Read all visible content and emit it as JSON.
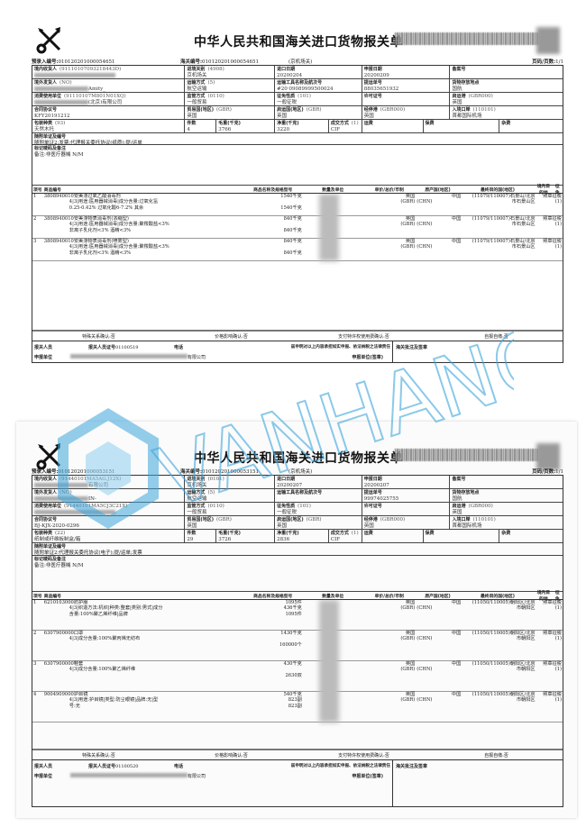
{
  "watermark": {
    "text": "VANHANG",
    "color": "#3ea6dc"
  },
  "forms": [
    {
      "title": "中华人民共和国海关进口货物报关单",
      "preentry_label": "预录入编号:",
      "preentry_no": "010120201000054651",
      "customs_no_label": "海关编号:",
      "customs_no": "010120201000054651",
      "customs_office": "(京机场关)",
      "page_label": "页码/页数:",
      "page": "1/1",
      "rows": [
        [
          {
            "label": "境内收货人",
            "code": "(91110107093218443D)",
            "value": "",
            "redacted": true
          },
          {
            "label": "进境关别",
            "code": "(4908)",
            "value": "京机场关"
          },
          {
            "label": "进口日期",
            "code": "",
            "value": "20200204"
          },
          {
            "label": "申报日期",
            "code": "",
            "value": "20200209"
          },
          {
            "label": "备案号",
            "code": "",
            "value": ""
          }
        ],
        [
          {
            "label": "境外发货人",
            "code": "(NO)",
            "value": "Amity_",
            "redacted": true
          },
          {
            "label": "运输方式",
            "code": "(5)",
            "value": "航空运输"
          },
          {
            "label": "运输工具名称及航次号",
            "code": "",
            "value": "#20·09089999500024"
          },
          {
            "label": "提运单号",
            "code": "",
            "value": "88035651932"
          },
          {
            "label": "货物存放地点",
            "code": "",
            "value": "国航"
          }
        ],
        [
          {
            "label": "消费使用单位",
            "code": "(91110107M801N01XQ)",
            "value": "(北京)有限公司",
            "redacted": true
          },
          {
            "label": "监管方式",
            "code": "(0110)",
            "value": "一般贸易"
          },
          {
            "label": "征免性质",
            "code": "(101)",
            "value": "一般征税"
          },
          {
            "label": "许可证号",
            "code": "",
            "value": ""
          },
          {
            "label": "启运港",
            "code": "(GBR000)",
            "value": "英国"
          }
        ],
        [
          {
            "label": "合同协议号",
            "code": "",
            "value": "KFY20191212"
          },
          {
            "label": "贸易国(地区)",
            "code": "(GBR)",
            "value": "英国"
          },
          {
            "label": "启运国(地区)",
            "code": "(GBR)",
            "value": "英国"
          },
          {
            "label": "经停港",
            "code": "(GBR000)",
            "value": "英国"
          },
          {
            "label": "入境口岸",
            "code": "(110101)",
            "value": "首都国际机场"
          }
        ],
        [
          {
            "label": "包装种类",
            "code": "(93)",
            "value": "天然木托"
          },
          {
            "label": "件数",
            "code": "",
            "value": "4"
          },
          {
            "label": "毛重(千克)",
            "code": "",
            "value": "3766"
          },
          {
            "label": "净重(千克)",
            "code": "",
            "value": "3220"
          },
          {
            "label": "成交方式",
            "code": "(1)",
            "value": "CIF"
          },
          {
            "label": "运费",
            "code": "",
            "value": ""
          },
          {
            "label": "保费",
            "code": "",
            "value": ""
          },
          {
            "label": "杂费",
            "code": "",
            "value": ""
          }
        ]
      ],
      "docs": {
        "label": "随附单证及编号",
        "value": "随附单证2:发票;代理报关委托协议(纸质);提/运单"
      },
      "marks": {
        "label": "标记唛码及备注",
        "value": "备注:非医疗器械 N/M"
      },
      "item_headers": [
        "项号",
        "商品编号",
        "商品名称及规格型号",
        "数量及单位",
        "单价/总价/币制",
        "原产国(地区)",
        "最终目的国(地区)",
        "境内目的地",
        "征免"
      ],
      "items": [
        {
          "no": "1",
          "code": "3808940010",
          "name": "安美涤过氧乙酸消毒剂",
          "spec": [
            "4|3|用途:医用器械消毒|成分含量:过氧化氢",
            "0.25-0.42% 过氧化酸6-7.2% 其余"
          ],
          "qty": [
            "1540千克",
            "",
            "1540千克"
          ],
          "origin": "英国",
          "origin_code": "(GBR)",
          "dest": "中国",
          "dest_code": "(CHN)",
          "domestic": "(11079/110007)石景山/北京",
          "domestic2": "市石景山区",
          "levy": "照章征税",
          "levy_code": "(1)"
        },
        {
          "no": "2",
          "code": "3808940010",
          "name": "安美涤物表消毒剂(浓缩型)",
          "spec": [
            "4|3|用途:医用器械消毒|成分含量:聚羧酸盐<3%",
            "非离子乳化剂<3% 酒精<3%"
          ],
          "qty": [
            "840千克",
            "",
            "840千克"
          ],
          "origin": "英国",
          "origin_code": "(GBR)",
          "dest": "中国",
          "dest_code": "(CHN)",
          "domestic": "(11079/110007)石景山/北京",
          "domestic2": "市石景山区",
          "levy": "照章征税",
          "levy_code": "(1)"
        },
        {
          "no": "3",
          "code": "3808940010",
          "name": "安美涤物表消毒剂(喷雾型)",
          "spec": [
            "4|3|用途:医用器械消毒|成分含量:聚羧酸盐<3%",
            "非离子乳化剂<3% 酒精<3%"
          ],
          "qty": [
            "840千克",
            "",
            "840千克"
          ],
          "origin": "英国",
          "origin_code": "(GBR)",
          "dest": "中国",
          "dest_code": "(CHN)",
          "domestic": "(11079/110007)石景山/北京",
          "domestic2": "市石景山区",
          "levy": "照章征税",
          "levy_code": "(1)"
        }
      ],
      "footer": [
        "特殊关系确认:否",
        "价格影响确认:否",
        "支付特许权使用费确认:否",
        "自报自缴:否"
      ],
      "declarant": {
        "person_label": "报关人员",
        "cert_label": "报关人员证号",
        "cert_no": "01100519",
        "phone_label": "电话",
        "statement": "兹申明对以上内容承担如实申报、依法纳税之法律责任",
        "unit_label": "申报单位",
        "unit_value": "有限公司",
        "seal_label": "申报单位(签章)",
        "customs_note_label": "海关批注及签章"
      }
    },
    {
      "title": "中华人民共和国海关进口货物报关单",
      "preentry_label": "预录入编号:",
      "preentry_no": "010120201000053151",
      "customs_no_label": "海关编号:",
      "customs_no": "010120201000053151",
      "customs_office": "(京机场关)",
      "page_label": "页码/页数:",
      "page": "1/1",
      "rows": [
        [
          {
            "label": "境内收货人",
            "code": "(91440101MA5AG.J12X)",
            "value": "有限公司",
            "redacted": true
          },
          {
            "label": "进境关别",
            "code": "(0101)",
            "value": "京机场关"
          },
          {
            "label": "进口日期",
            "code": "",
            "value": "20200207"
          },
          {
            "label": "申报日期",
            "code": "",
            "value": "20200207"
          },
          {
            "label": "备案号",
            "code": "",
            "value": ""
          }
        ],
        [
          {
            "label": "境外发货人",
            "code": "(NO)",
            "value": "IN-",
            "redacted": true
          },
          {
            "label": "运输方式",
            "code": "(5)",
            "value": "航空运输"
          },
          {
            "label": "运输工具名称及航次号",
            "code": "",
            "value": ""
          },
          {
            "label": "提运单号",
            "code": "",
            "value": "99974025755"
          },
          {
            "label": "货物存放地点",
            "code": "",
            "value": "国航"
          }
        ],
        [
          {
            "label": "消费使用单位",
            "code": "(91440101MA5CJ3C21X)",
            "value": "",
            "redacted": true
          },
          {
            "label": "监管方式",
            "code": "(0110)",
            "value": "一般贸易"
          },
          {
            "label": "征免性质",
            "code": "(101)",
            "value": "一般征税"
          },
          {
            "label": "许可证号",
            "code": "",
            "value": ""
          },
          {
            "label": "启运港",
            "code": "(GBR000)",
            "value": "英国"
          }
        ],
        [
          {
            "label": "合同协议号",
            "code": "",
            "value": "BJ-KJX-2020-0296"
          },
          {
            "label": "贸易国(地区)",
            "code": "(GBR)",
            "value": "英国"
          },
          {
            "label": "启运国(地区)",
            "code": "(GBR)",
            "value": "英国"
          },
          {
            "label": "经停港",
            "code": "(GBR000)",
            "value": "英国"
          },
          {
            "label": "入境口岸",
            "code": "(110101)",
            "value": "首都国际机场"
          }
        ],
        [
          {
            "label": "包装种类",
            "code": "(22)",
            "value": "纸制或纤维板制盒/箱"
          },
          {
            "label": "件数",
            "code": "",
            "value": "29"
          },
          {
            "label": "毛重(千克)",
            "code": "",
            "value": "3726"
          },
          {
            "label": "净重(千克)",
            "code": "",
            "value": "2836"
          },
          {
            "label": "成交方式",
            "code": "(1)",
            "value": "CIF"
          },
          {
            "label": "运费",
            "code": "",
            "value": ""
          },
          {
            "label": "保费",
            "code": "",
            "value": ""
          },
          {
            "label": "杂费",
            "code": "",
            "value": ""
          }
        ]
      ],
      "docs": {
        "label": "随附单证及编号",
        "value": "随附单证2:代理报关委托协议(电子);提/运单;发票"
      },
      "marks": {
        "label": "标记唛码及备注",
        "value": "备注:非医疗器械 N/M"
      },
      "item_headers": [
        "项号",
        "商品编号",
        "商品名称及规格型号",
        "数量及单位",
        "单价/总价/币制",
        "原产国(地区)",
        "最终目的国(地区)",
        "境内目的地",
        "征免"
      ],
      "items": [
        {
          "no": "1",
          "code": "6210103000",
          "name": "防护服",
          "spec": [
            "4|3|织造方法:机织|种类:整套|类别:男式|成分",
            "含量:100%聚乙烯纤维|品牌"
          ],
          "qty": [
            "1095件",
            "436千克",
            "1095件"
          ],
          "origin": "英国",
          "origin_code": "(GBR)",
          "dest": "中国",
          "dest_code": "(CHN)",
          "domestic": "(11050/110005)朝阳区/北京",
          "domestic2": "市朝阳区",
          "levy": "照章征税",
          "levy_code": "(1)"
        },
        {
          "no": "2",
          "code": "6307900000",
          "name": "口罩",
          "spec": [
            "4|3|成分含量:100%聚丙烯无纺布"
          ],
          "qty": [
            "1430千克",
            "",
            "160000个"
          ],
          "origin": "英国",
          "origin_code": "(GBR)",
          "dest": "中国",
          "dest_code": "(CHN)",
          "domestic": "(11050/110005)朝阳区/北京",
          "domestic2": "市朝阳区",
          "levy": "照章征税",
          "levy_code": "(1)"
        },
        {
          "no": "3",
          "code": "6307900000",
          "name": "鞋套",
          "spec": [
            "4|3|成分含量:100%聚乙烯纤维"
          ],
          "qty": [
            "430千克",
            "",
            "2630双"
          ],
          "origin": "英国",
          "origin_code": "(GBR)",
          "dest": "中国",
          "dest_code": "(CHN)",
          "domestic": "(11050/110005)朝阳区/北京",
          "domestic2": "市朝阳区",
          "levy": "照章征税",
          "levy_code": "(1)"
        },
        {
          "no": "4",
          "code": "9004909000",
          "name": "护目镜",
          "spec": [
            "4|3|用途:护目镜|类型:防尘眼镜|品牌:无|型",
            "号:无"
          ],
          "qty": [
            "540千克",
            "823副",
            "823副"
          ],
          "origin": "英国",
          "origin_code": "(GBR)",
          "dest": "中国",
          "dest_code": "(CHN)",
          "domestic": "(11050/110005)朝阳区/北京",
          "domestic2": "市朝阳区",
          "levy": "照章征税",
          "levy_code": "(1)"
        }
      ],
      "footer": [
        "特殊关系确认:否",
        "价格影响确认:否",
        "支付特许权使用费确认:否",
        "自报自缴:否"
      ],
      "declarant": {
        "person_label": "报关人员",
        "cert_label": "报关人员证号",
        "cert_no": "01100520",
        "phone_label": "电话",
        "statement": "兹申明对以上内容承担如实申报、依法纳税之法律责任",
        "unit_label": "申报单位",
        "unit_value": "有限公司",
        "seal_label": "申报单位(签章)",
        "customs_note_label": "海关批注及签章"
      }
    }
  ]
}
